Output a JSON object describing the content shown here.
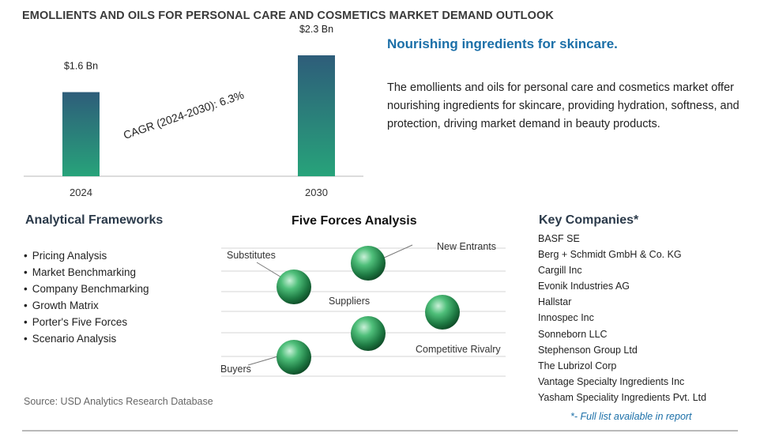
{
  "page": {
    "title": "EMOLLIENTS AND OILS FOR PERSONAL CARE AND COSMETICS MARKET DEMAND OUTLOOK"
  },
  "chart_data": {
    "type": "bar",
    "categories": [
      "2024",
      "2030"
    ],
    "values": [
      1.6,
      2.3
    ],
    "value_labels": [
      "$1.6 Bn",
      "$2.3 Bn"
    ],
    "annotation": "CAGR (2024-2030):  6.3%",
    "ylim": [
      0,
      2.3
    ],
    "colors": {
      "bar_top": "#2e5d7a",
      "bar_bottom": "#27a37a"
    }
  },
  "summary": {
    "tagline": "Nourishing ingredients for skincare.",
    "description": "The emollients and oils for personal care and cosmetics market offer nourishing ingredients for skincare, providing hydration, softness, and protection, driving market demand in beauty products."
  },
  "frameworks": {
    "title": "Analytical Frameworks",
    "items": [
      "Pricing Analysis",
      "Market Benchmarking",
      "Company Benchmarking",
      "Growth Matrix",
      "Porter's Five Forces",
      "Scenario Analysis"
    ]
  },
  "five_forces": {
    "title": "Five Forces Analysis",
    "labels": {
      "substitutes": "Substitutes",
      "new_entrants": "New Entrants",
      "suppliers": "Suppliers",
      "competitive_rivalry": "Competitive Rivalry",
      "buyers": "Buyers"
    }
  },
  "companies": {
    "title": "Key Companies*",
    "items": [
      "BASF SE",
      "Berg + Schmidt GmbH & Co. KG",
      "Cargill Inc",
      "Evonik Industries AG",
      "Hallstar",
      "Innospec Inc",
      "Sonneborn LLC",
      "Stephenson Group Ltd",
      "The Lubrizol Corp",
      "Vantage Specialty Ingredients Inc",
      "Yasham Speciality Ingredients Pvt. Ltd"
    ],
    "note": "*- Full list available in report"
  },
  "source": "Source: USD Analytics Research Database"
}
